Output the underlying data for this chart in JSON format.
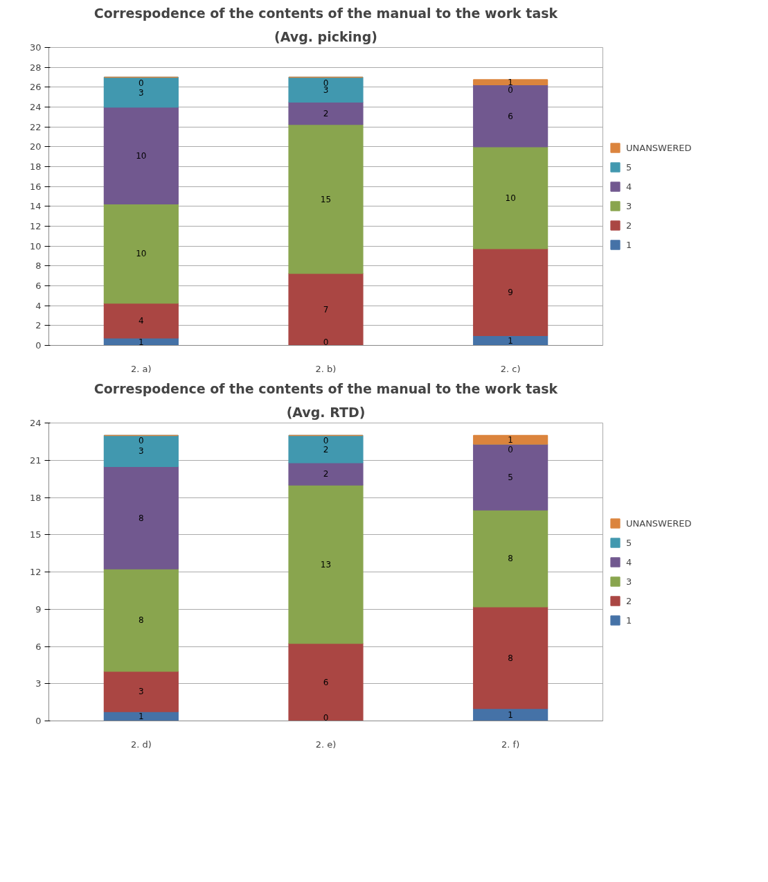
{
  "chart_data": [
    {
      "type": "bar",
      "stacked": true,
      "title": "Correspodence of the contents of the manual to the work task",
      "subtitle": "(Avg. picking)",
      "categories": [
        "2. a)",
        "2. b)",
        "2. c)"
      ],
      "ylim": [
        0,
        30
      ],
      "yticks": [
        0,
        2,
        4,
        6,
        8,
        10,
        12,
        14,
        16,
        18,
        20,
        22,
        24,
        26,
        28,
        30
      ],
      "grid": "y",
      "legend": "right",
      "series": [
        {
          "name": "1",
          "color": "#4572a7",
          "values": [
            0.75,
            0,
            1
          ],
          "value_labels": [
            "1",
            "0",
            "1"
          ]
        },
        {
          "name": "2",
          "color": "#aa4643",
          "values": [
            3.5,
            7.25,
            8.75
          ],
          "value_labels": [
            "4",
            "7",
            "9"
          ]
        },
        {
          "name": "3",
          "color": "#89a54e",
          "values": [
            10,
            15,
            10.25
          ],
          "value_labels": [
            "10",
            "15",
            "10"
          ]
        },
        {
          "name": "4",
          "color": "#71588f",
          "values": [
            9.75,
            2.25,
            6.25
          ],
          "value_labels": [
            "10",
            "2",
            "6"
          ]
        },
        {
          "name": "5",
          "color": "#4198af",
          "values": [
            3,
            2.5,
            0
          ],
          "value_labels": [
            "3",
            "3",
            "0"
          ]
        },
        {
          "name": "UNANSWERED",
          "color": "#db843d",
          "values": [
            0,
            0,
            0.5
          ],
          "value_labels": [
            "0",
            "0",
            "1"
          ]
        }
      ]
    },
    {
      "type": "bar",
      "stacked": true,
      "title": "Correspodence of the contents of the manual to the work task",
      "subtitle": "(Avg. RTD)",
      "categories": [
        "2. d)",
        "2. e)",
        "2. f)"
      ],
      "ylim": [
        0,
        24
      ],
      "yticks": [
        0,
        3,
        6,
        9,
        12,
        15,
        18,
        21,
        24
      ],
      "grid": "y",
      "legend": "right",
      "series": [
        {
          "name": "1",
          "color": "#4572a7",
          "values": [
            0.75,
            0,
            1
          ],
          "value_labels": [
            "1",
            "0",
            "1"
          ]
        },
        {
          "name": "2",
          "color": "#aa4643",
          "values": [
            3.25,
            6.25,
            8.2
          ],
          "value_labels": [
            "3",
            "6",
            "8"
          ]
        },
        {
          "name": "3",
          "color": "#89a54e",
          "values": [
            8.25,
            12.75,
            7.8
          ],
          "value_labels": [
            "8",
            "13",
            "8"
          ]
        },
        {
          "name": "4",
          "color": "#71588f",
          "values": [
            8.25,
            1.8,
            5.3
          ],
          "value_labels": [
            "8",
            "2",
            "5"
          ]
        },
        {
          "name": "5",
          "color": "#4198af",
          "values": [
            2.5,
            2.2,
            0
          ],
          "value_labels": [
            "3",
            "2",
            "0"
          ]
        },
        {
          "name": "UNANSWERED",
          "color": "#db843d",
          "values": [
            0,
            0,
            0.7
          ],
          "value_labels": [
            "0",
            "0",
            "1"
          ]
        }
      ]
    }
  ]
}
